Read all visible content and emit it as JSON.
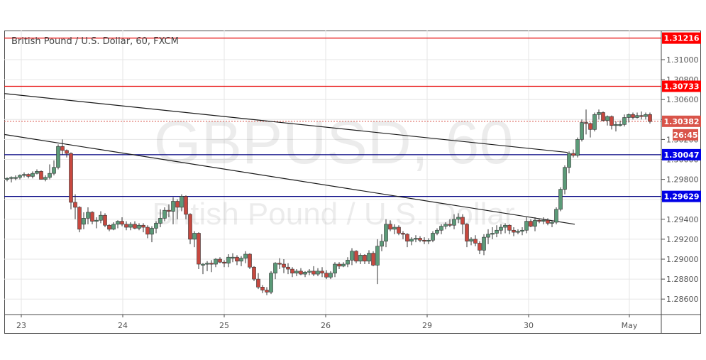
{
  "header": {
    "title": "British Pound / U.S. Dollar, 60, FXCM"
  },
  "watermark": {
    "symbol": "GBPUSD, 60",
    "description": "British Pound / U.S. Dollar"
  },
  "colors": {
    "up": "#5b9a78",
    "down": "#c7483f",
    "resistance": "#e60000",
    "support": "#0000cc",
    "last_price": "#d9544a",
    "trendline": "#1a1a1a",
    "grid": "#e6e6e6"
  },
  "price_axis": {
    "ticks": [
      "1.31000",
      "1.30800",
      "1.30600",
      "1.30400",
      "1.30200",
      "1.30000",
      "1.29800",
      "1.29600",
      "1.29400",
      "1.29200",
      "1.29000",
      "1.28800",
      "1.28600"
    ],
    "tags": [
      {
        "label": "1.31216",
        "type": "resistance"
      },
      {
        "label": "1.30733",
        "type": "resistance"
      },
      {
        "label": "1.30382",
        "type": "last_price"
      },
      {
        "label": "26:45",
        "type": "countdown"
      },
      {
        "label": "1.30047",
        "type": "support"
      },
      {
        "label": "1.29629",
        "type": "support"
      }
    ]
  },
  "time_axis": {
    "ticks": [
      "23",
      "24",
      "25",
      "26",
      "29",
      "30",
      "May"
    ]
  },
  "chart_data": {
    "type": "candlestick",
    "title": "British Pound / U.S. Dollar, 60, FXCM",
    "symbol": "GBPUSD",
    "interval": "60",
    "source": "FXCM",
    "xlabel": "",
    "ylabel": "",
    "ylim": [
      1.285,
      1.313
    ],
    "x_ticks": [
      "23",
      "24",
      "25",
      "26",
      "29",
      "30",
      "May"
    ],
    "y_ticks": [
      1.31,
      1.308,
      1.306,
      1.304,
      1.302,
      1.3,
      1.298,
      1.296,
      1.294,
      1.292,
      1.29,
      1.288,
      1.286
    ],
    "grid": true,
    "last_price": 1.30382,
    "countdown": "26:45",
    "horizontal_levels": [
      {
        "price": 1.31216,
        "color": "#e60000",
        "role": "resistance"
      },
      {
        "price": 1.30733,
        "color": "#e60000",
        "role": "resistance"
      },
      {
        "price": 1.30047,
        "color": "#000080",
        "role": "support"
      },
      {
        "price": 1.29629,
        "color": "#000080",
        "role": "support"
      }
    ],
    "trendlines": [
      {
        "from": {
          "x": 6,
          "price": 1.3066
        },
        "to": {
          "x": 800,
          "price": 1.3007
        }
      },
      {
        "from": {
          "x": 6,
          "price": 1.3025
        },
        "to": {
          "x": 810,
          "price": 1.2935
        }
      }
    ],
    "candles": [
      [
        10,
        1.298,
        1.2982,
        1.2978,
        1.2981
      ],
      [
        16,
        1.2981,
        1.2983,
        1.2977,
        1.2982
      ],
      [
        22,
        1.2982,
        1.2984,
        1.2979,
        1.2982
      ],
      [
        28,
        1.2982,
        1.2985,
        1.298,
        1.2984
      ],
      [
        34,
        1.2984,
        1.2987,
        1.2982,
        1.2985
      ],
      [
        40,
        1.2985,
        1.2986,
        1.2981,
        1.2983
      ],
      [
        46,
        1.2983,
        1.2988,
        1.2981,
        1.2986
      ],
      [
        52,
        1.2986,
        1.299,
        1.2985,
        1.2988
      ],
      [
        58,
        1.2988,
        1.2989,
        1.2982,
        1.298
      ],
      [
        64,
        1.298,
        1.2984,
        1.2978,
        1.2982
      ],
      [
        70,
        1.2982,
        1.2995,
        1.298,
        1.2986
      ],
      [
        76,
        1.2986,
        1.2999,
        1.2984,
        1.2992
      ],
      [
        82,
        1.2992,
        1.3015,
        1.299,
        1.3013
      ],
      [
        88,
        1.3013,
        1.302,
        1.3005,
        1.3009
      ],
      [
        94,
        1.3009,
        1.301,
        1.3002,
        1.3006
      ],
      [
        100,
        1.3006,
        1.3007,
        1.295,
        1.2957
      ],
      [
        106,
        1.2957,
        1.2965,
        1.294,
        1.2952
      ],
      [
        112,
        1.2952,
        1.2953,
        1.2927,
        1.293
      ],
      [
        118,
        1.2935,
        1.2947,
        1.293,
        1.2941
      ],
      [
        124,
        1.2941,
        1.2952,
        1.2935,
        1.2947
      ],
      [
        130,
        1.2947,
        1.2948,
        1.2935,
        1.2938
      ],
      [
        136,
        1.2938,
        1.2942,
        1.2931,
        1.2939
      ],
      [
        142,
        1.2939,
        1.2948,
        1.2936,
        1.2944
      ],
      [
        148,
        1.2944,
        1.2946,
        1.2932,
        1.2934
      ],
      [
        154,
        1.2934,
        1.2935,
        1.2928,
        1.293
      ],
      [
        160,
        1.293,
        1.2937,
        1.2929,
        1.2935
      ],
      [
        166,
        1.2935,
        1.2939,
        1.2931,
        1.2938
      ],
      [
        172,
        1.2938,
        1.2942,
        1.2933,
        1.2935
      ],
      [
        178,
        1.2935,
        1.2938,
        1.2929,
        1.2932
      ],
      [
        184,
        1.2932,
        1.2937,
        1.2929,
        1.2935
      ],
      [
        190,
        1.2935,
        1.2938,
        1.293,
        1.2931
      ],
      [
        196,
        1.2931,
        1.2936,
        1.2929,
        1.2934
      ],
      [
        202,
        1.2934,
        1.2936,
        1.2927,
        1.2932
      ],
      [
        208,
        1.2932,
        1.2934,
        1.2921,
        1.2925
      ],
      [
        214,
        1.2925,
        1.2933,
        1.2917,
        1.2931
      ],
      [
        220,
        1.2931,
        1.2938,
        1.2926,
        1.2936
      ],
      [
        226,
        1.2936,
        1.295,
        1.2932,
        1.2941
      ],
      [
        232,
        1.2941,
        1.2952,
        1.2938,
        1.2949
      ],
      [
        238,
        1.2949,
        1.2955,
        1.2942,
        1.2948
      ],
      [
        244,
        1.2948,
        1.2962,
        1.2935,
        1.2958
      ],
      [
        250,
        1.2958,
        1.296,
        1.294,
        1.2952
      ],
      [
        256,
        1.2952,
        1.2965,
        1.2948,
        1.2963
      ],
      [
        262,
        1.2963,
        1.2964,
        1.294,
        1.2945
      ],
      [
        268,
        1.2945,
        1.2946,
        1.2915,
        1.292
      ],
      [
        274,
        1.292,
        1.2928,
        1.2912,
        1.2926
      ],
      [
        280,
        1.2926,
        1.2927,
        1.289,
        1.2895
      ],
      [
        286,
        1.2895,
        1.2896,
        1.2885,
        1.2895
      ],
      [
        292,
        1.2895,
        1.2898,
        1.2888,
        1.2896
      ],
      [
        298,
        1.2896,
        1.2899,
        1.2887,
        1.2895
      ],
      [
        304,
        1.2895,
        1.2901,
        1.2892,
        1.29
      ],
      [
        310,
        1.29,
        1.2902,
        1.2896,
        1.2897
      ],
      [
        316,
        1.2897,
        1.2899,
        1.2892,
        1.2896
      ],
      [
        322,
        1.2896,
        1.2905,
        1.2892,
        1.2902
      ],
      [
        328,
        1.2902,
        1.2906,
        1.2897,
        1.2902
      ],
      [
        334,
        1.2902,
        1.2904,
        1.2894,
        1.2898
      ],
      [
        340,
        1.2898,
        1.2903,
        1.2893,
        1.2901
      ],
      [
        346,
        1.2901,
        1.2908,
        1.2896,
        1.2905
      ],
      [
        352,
        1.2905,
        1.2906,
        1.289,
        1.2892
      ],
      [
        358,
        1.2892,
        1.2893,
        1.2878,
        1.288
      ],
      [
        364,
        1.288,
        1.2886,
        1.287,
        1.2872
      ],
      [
        370,
        1.2872,
        1.2874,
        1.2866,
        1.2869
      ],
      [
        376,
        1.2869,
        1.2872,
        1.2864,
        1.2867
      ],
      [
        382,
        1.2867,
        1.2888,
        1.2865,
        1.2886
      ],
      [
        388,
        1.2886,
        1.2897,
        1.288,
        1.2896
      ],
      [
        394,
        1.2896,
        1.2901,
        1.289,
        1.2895
      ],
      [
        400,
        1.2895,
        1.29,
        1.2886,
        1.2892
      ],
      [
        406,
        1.2892,
        1.2896,
        1.2885,
        1.289
      ],
      [
        412,
        1.289,
        1.2892,
        1.2882,
        1.2886
      ],
      [
        418,
        1.2886,
        1.289,
        1.2883,
        1.2888
      ],
      [
        424,
        1.2888,
        1.2891,
        1.2884,
        1.2885
      ],
      [
        430,
        1.2885,
        1.2888,
        1.2882,
        1.2887
      ],
      [
        436,
        1.2887,
        1.289,
        1.2884,
        1.2888
      ],
      [
        442,
        1.2888,
        1.2893,
        1.2883,
        1.2885
      ],
      [
        448,
        1.2885,
        1.2891,
        1.2883,
        1.2888
      ],
      [
        454,
        1.2888,
        1.2892,
        1.2882,
        1.2886
      ],
      [
        460,
        1.2886,
        1.2889,
        1.288,
        1.2882
      ],
      [
        466,
        1.2882,
        1.2888,
        1.288,
        1.2886
      ],
      [
        472,
        1.2886,
        1.2897,
        1.2882,
        1.2895
      ],
      [
        478,
        1.2895,
        1.2897,
        1.289,
        1.2893
      ],
      [
        484,
        1.2893,
        1.2897,
        1.2892,
        1.2895
      ],
      [
        490,
        1.2895,
        1.2902,
        1.2892,
        1.2899
      ],
      [
        496,
        1.2899,
        1.2911,
        1.2894,
        1.2908
      ],
      [
        502,
        1.2908,
        1.2909,
        1.2896,
        1.2898
      ],
      [
        508,
        1.2898,
        1.2906,
        1.2895,
        1.2904
      ],
      [
        514,
        1.2904,
        1.2905,
        1.2895,
        1.2898
      ],
      [
        520,
        1.2898,
        1.2909,
        1.2895,
        1.2906
      ],
      [
        526,
        1.2906,
        1.2908,
        1.2893,
        1.2894
      ],
      [
        532,
        1.2894,
        1.292,
        1.2875,
        1.2913
      ],
      [
        538,
        1.2913,
        1.2925,
        1.2908,
        1.2918
      ],
      [
        544,
        1.2918,
        1.294,
        1.2912,
        1.2935
      ],
      [
        550,
        1.2935,
        1.2939,
        1.2928,
        1.293
      ],
      [
        556,
        1.293,
        1.2935,
        1.2925,
        1.2932
      ],
      [
        562,
        1.2932,
        1.2934,
        1.2924,
        1.2926
      ],
      [
        568,
        1.2926,
        1.2928,
        1.292,
        1.2925
      ],
      [
        574,
        1.2925,
        1.2926,
        1.2912,
        1.2918
      ],
      [
        580,
        1.2918,
        1.2922,
        1.2914,
        1.292
      ],
      [
        586,
        1.292,
        1.2924,
        1.2917,
        1.2921
      ],
      [
        592,
        1.2921,
        1.2923,
        1.2917,
        1.2919
      ],
      [
        598,
        1.2919,
        1.2922,
        1.2915,
        1.2918
      ],
      [
        604,
        1.2918,
        1.2921,
        1.2915,
        1.2919
      ],
      [
        610,
        1.2919,
        1.2928,
        1.2917,
        1.2926
      ],
      [
        616,
        1.2926,
        1.2931,
        1.2924,
        1.2929
      ],
      [
        622,
        1.2929,
        1.2935,
        1.2925,
        1.2933
      ],
      [
        628,
        1.2933,
        1.2937,
        1.293,
        1.2935
      ],
      [
        634,
        1.2935,
        1.294,
        1.2932,
        1.2934
      ],
      [
        640,
        1.2934,
        1.2945,
        1.293,
        1.294
      ],
      [
        646,
        1.294,
        1.2946,
        1.2936,
        1.2942
      ],
      [
        652,
        1.2942,
        1.2945,
        1.2925,
        1.2935
      ],
      [
        658,
        1.2935,
        1.2936,
        1.2912,
        1.2918
      ],
      [
        664,
        1.2918,
        1.2922,
        1.2914,
        1.292
      ],
      [
        670,
        1.292,
        1.2924,
        1.2913,
        1.2916
      ],
      [
        676,
        1.2916,
        1.2918,
        1.2905,
        1.2909
      ],
      [
        682,
        1.2909,
        1.2925,
        1.2904,
        1.2922
      ],
      [
        688,
        1.2922,
        1.293,
        1.2915,
        1.2925
      ],
      [
        694,
        1.2925,
        1.2932,
        1.292,
        1.2926
      ],
      [
        700,
        1.2926,
        1.2934,
        1.2922,
        1.2929
      ],
      [
        706,
        1.2929,
        1.2935,
        1.2925,
        1.2932
      ],
      [
        712,
        1.2932,
        1.2936,
        1.2926,
        1.2934
      ],
      [
        718,
        1.2934,
        1.2935,
        1.2925,
        1.2929
      ],
      [
        724,
        1.2929,
        1.2932,
        1.2923,
        1.2927
      ],
      [
        730,
        1.2927,
        1.293,
        1.2925,
        1.2928
      ],
      [
        736,
        1.2928,
        1.2932,
        1.2924,
        1.2929
      ],
      [
        742,
        1.2929,
        1.2942,
        1.2926,
        1.2938
      ],
      [
        748,
        1.2938,
        1.294,
        1.2932,
        1.2933
      ],
      [
        754,
        1.2933,
        1.2942,
        1.2928,
        1.2939
      ],
      [
        760,
        1.2939,
        1.2941,
        1.2936,
        1.2938
      ],
      [
        766,
        1.2938,
        1.2942,
        1.2935,
        1.2939
      ],
      [
        772,
        1.2939,
        1.2941,
        1.2934,
        1.2936
      ],
      [
        778,
        1.2936,
        1.2938,
        1.2932,
        1.2937
      ],
      [
        784,
        1.2937,
        1.2952,
        1.2935,
        1.295
      ],
      [
        790,
        1.295,
        1.2972,
        1.2948,
        1.297
      ],
      [
        796,
        1.297,
        1.2994,
        1.2965,
        1.2992
      ],
      [
        802,
        1.2992,
        1.3008,
        1.2986,
        1.3006
      ],
      [
        808,
        1.3006,
        1.301,
        1.3002,
        1.3004
      ],
      [
        814,
        1.3004,
        1.3022,
        1.3002,
        1.302
      ],
      [
        820,
        1.302,
        1.304,
        1.3018,
        1.3037
      ],
      [
        826,
        1.3037,
        1.305,
        1.3025,
        1.3036
      ],
      [
        832,
        1.3036,
        1.3037,
        1.3022,
        1.303
      ],
      [
        838,
        1.303,
        1.3047,
        1.3028,
        1.3045
      ],
      [
        844,
        1.3045,
        1.305,
        1.304,
        1.3047
      ],
      [
        850,
        1.3047,
        1.3048,
        1.3038,
        1.3039
      ],
      [
        856,
        1.3039,
        1.3044,
        1.3034,
        1.3043
      ],
      [
        862,
        1.3043,
        1.3044,
        1.303,
        1.3034
      ],
      [
        868,
        1.3034,
        1.3038,
        1.3028,
        1.3035
      ],
      [
        874,
        1.3035,
        1.3039,
        1.3033,
        1.3035
      ],
      [
        880,
        1.3035,
        1.3045,
        1.3033,
        1.3042
      ],
      [
        886,
        1.3042,
        1.3046,
        1.3037,
        1.3045
      ],
      [
        892,
        1.3045,
        1.3047,
        1.304,
        1.3042
      ],
      [
        898,
        1.3042,
        1.3047,
        1.3041,
        1.3044
      ],
      [
        904,
        1.3044,
        1.3048,
        1.304,
        1.3043
      ],
      [
        910,
        1.3043,
        1.3047,
        1.304,
        1.3045
      ],
      [
        916,
        1.3045,
        1.3047,
        1.3036,
        1.3038
      ]
    ]
  }
}
